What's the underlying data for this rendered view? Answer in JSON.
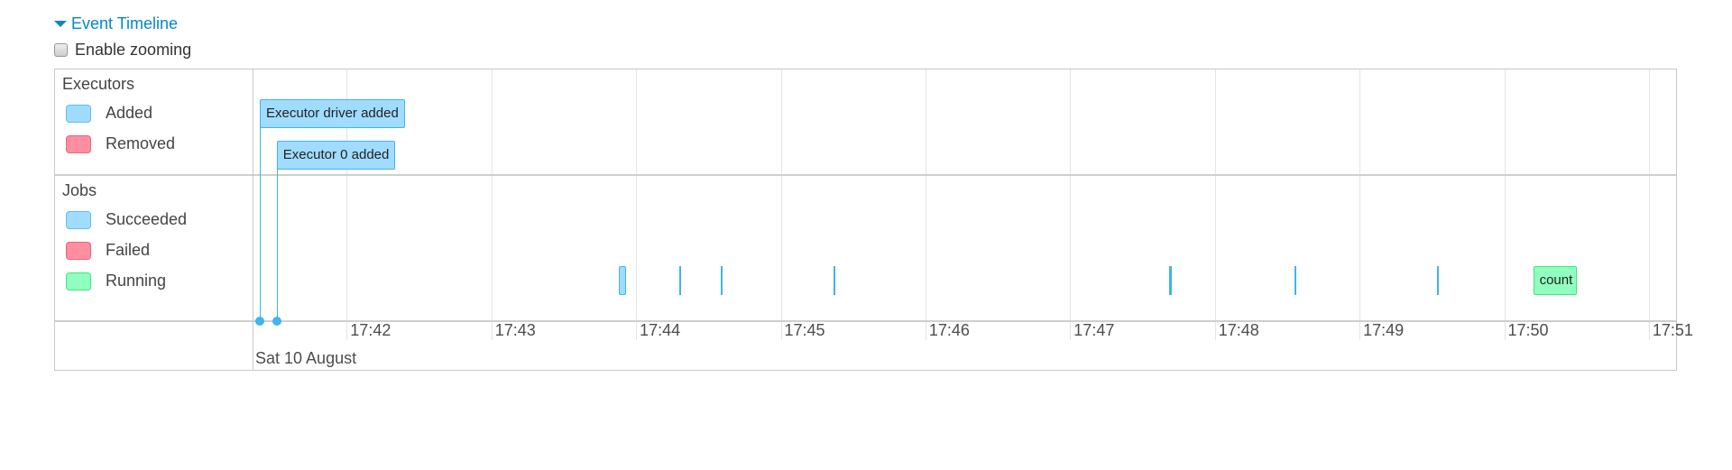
{
  "header": {
    "title": "Event Timeline",
    "zoom_label": "Enable zooming",
    "zoom_checked": false
  },
  "colors": {
    "added": "#a0dcff",
    "removed": "#ff8ea0",
    "succeeded": "#a0dcff",
    "failed": "#ff8ea0",
    "running": "#90ffc0",
    "link": "#0088cc"
  },
  "groups": {
    "executors": {
      "label": "Executors",
      "legend": [
        {
          "label": "Added",
          "status": "added"
        },
        {
          "label": "Removed",
          "status": "removed"
        }
      ]
    },
    "jobs": {
      "label": "Jobs",
      "legend": [
        {
          "label": "Succeeded",
          "status": "succeeded"
        },
        {
          "label": "Failed",
          "status": "failed"
        },
        {
          "label": "Running",
          "status": "running"
        }
      ]
    }
  },
  "executor_events": [
    {
      "label": "Executor driver added",
      "time": "17:41:24",
      "status": "added"
    },
    {
      "label": "Executor 0 added",
      "time": "17:41:31",
      "status": "added"
    }
  ],
  "jobs": [
    {
      "start": "17:43:53",
      "end": "17:43:56",
      "status": "succeeded",
      "label": ""
    },
    {
      "start": "17:44:18",
      "end": "17:44:18",
      "status": "succeeded",
      "label": ""
    },
    {
      "start": "17:44:35",
      "end": "17:44:35",
      "status": "succeeded",
      "label": ""
    },
    {
      "start": "17:45:22",
      "end": "17:45:22",
      "status": "succeeded",
      "label": ""
    },
    {
      "start": "17:47:41",
      "end": "17:47:42",
      "status": "succeeded",
      "label": ""
    },
    {
      "start": "17:48:33",
      "end": "17:48:33",
      "status": "succeeded",
      "label": ""
    },
    {
      "start": "17:49:32",
      "end": "17:49:32",
      "status": "succeeded",
      "label": ""
    },
    {
      "start": "17:50:12",
      "end": "17:50:30",
      "status": "running",
      "label": "count"
    }
  ],
  "axis": {
    "ticks": [
      "17:42",
      "17:43",
      "17:44",
      "17:45",
      "17:46",
      "17:47",
      "17:48",
      "17:49",
      "17:50",
      "17:51"
    ],
    "date_label": "Sat 10 August"
  }
}
